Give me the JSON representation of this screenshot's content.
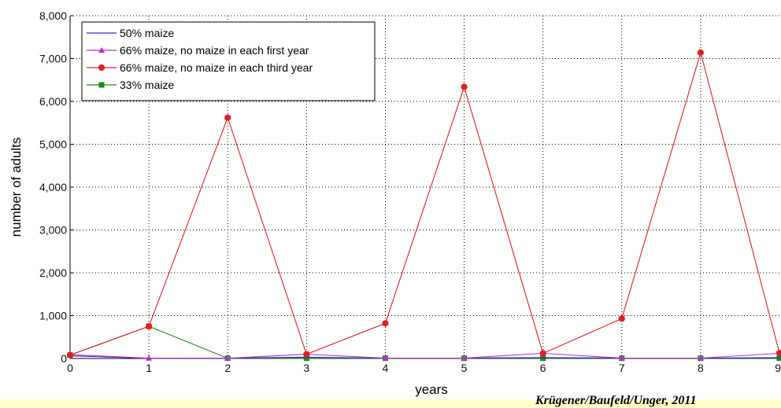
{
  "chart_data": {
    "type": "line",
    "xlabel": "years",
    "ylabel": "number of adults",
    "xlim": [
      0,
      9
    ],
    "ylim": [
      0,
      8000
    ],
    "x_ticks": [
      "0",
      "1",
      "2",
      "3",
      "4",
      "5",
      "6",
      "7",
      "8",
      "9"
    ],
    "y_ticks": [
      "0",
      "1,000",
      "2,000",
      "3,000",
      "4,000",
      "5,000",
      "6,000",
      "7,000",
      "8,000"
    ],
    "grid": "dotted",
    "legend_position": "top-left",
    "x": [
      0,
      1,
      2,
      3,
      4,
      5,
      6,
      7,
      8,
      9
    ],
    "series": [
      {
        "name": "50% maize",
        "color": "#2b2bb8",
        "marker": "none",
        "values": [
          60,
          5,
          10,
          30,
          10,
          10,
          20,
          10,
          10,
          20
        ]
      },
      {
        "name": "66% maize, no maize in each first year",
        "color": "#b832c8",
        "marker": "triangle",
        "values": [
          90,
          5,
          5,
          100,
          10,
          10,
          120,
          10,
          10,
          120
        ]
      },
      {
        "name": "66% maize, no maize in each third year",
        "color": "#e02020",
        "marker": "circle",
        "values": [
          80,
          750,
          5620,
          100,
          820,
          6340,
          120,
          930,
          7140,
          130
        ]
      },
      {
        "name": "33% maize",
        "color": "#1a8a1a",
        "marker": "square",
        "values": [
          80,
          750,
          5,
          5,
          5,
          5,
          5,
          5,
          5,
          5
        ]
      }
    ],
    "credit": "Krügener/Baufeld/Unger, 2011"
  }
}
